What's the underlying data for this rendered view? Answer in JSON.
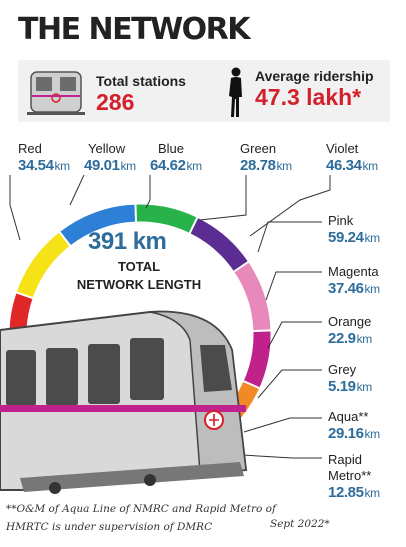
{
  "title": "THE NETWORK",
  "stats": {
    "stations_label": "Total stations",
    "stations_value": "286",
    "ridership_label": "Average ridership",
    "ridership_value": "47.3 lakh*"
  },
  "total": {
    "value": "391 km",
    "label_line1": "TOTAL",
    "label_line2": "NETWORK LENGTH"
  },
  "lines": [
    {
      "name": "Red",
      "km": "34.54",
      "color": "#e02828"
    },
    {
      "name": "Yellow",
      "km": "49.01",
      "color": "#f5e317"
    },
    {
      "name": "Blue",
      "km": "64.62",
      "color": "#2e7fd6"
    },
    {
      "name": "Green",
      "km": "28.78",
      "color": "#27b24a"
    },
    {
      "name": "Violet",
      "km": "46.34",
      "color": "#5b2d92"
    },
    {
      "name": "Pink",
      "km": "59.24",
      "color": "#e789ba"
    },
    {
      "name": "Magenta",
      "km": "37.46",
      "color": "#c0218a"
    },
    {
      "name": "Orange",
      "km": "22.9",
      "color": "#f08a24"
    },
    {
      "name": "Grey",
      "km": "5.19",
      "color": "#9a9a9a"
    },
    {
      "name": "Aqua**",
      "km": "29.16",
      "color": "#3fbfd6"
    },
    {
      "name": "Rapid Metro**",
      "name_line1": "Rapid",
      "name_line2": "Metro**",
      "km": "12.85",
      "color": "#a7dcd6"
    }
  ],
  "unit": "km",
  "footnote_line1": "**O&M of Aqua Line of NMRC and Rapid Metro of",
  "footnote_line2": "HMRTC is under supervision of DMRC",
  "date": "Sept 2022*"
}
